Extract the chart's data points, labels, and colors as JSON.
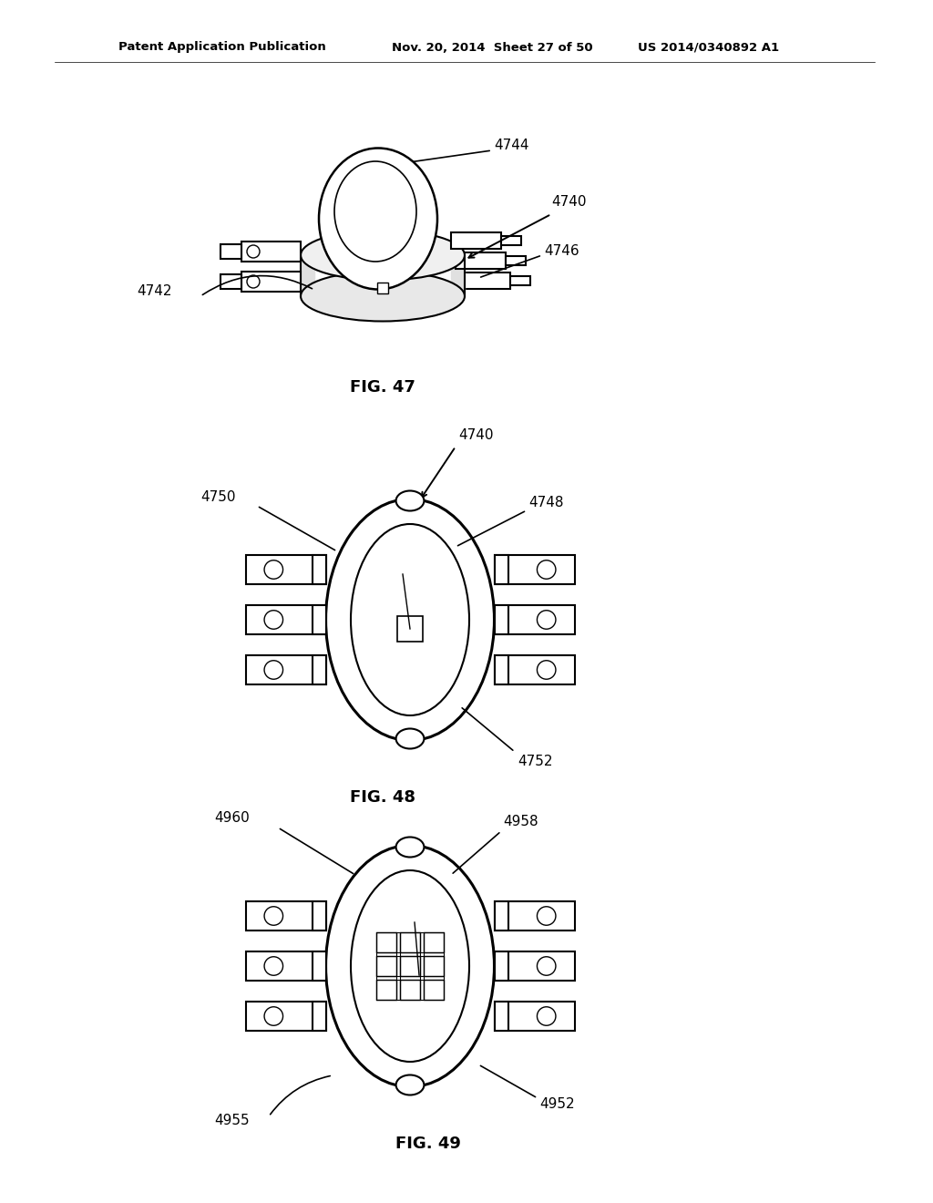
{
  "background_color": "#ffffff",
  "header_left": "Patent Application Publication",
  "header_mid": "Nov. 20, 2014  Sheet 27 of 50",
  "header_right": "US 2014/0340892 A1",
  "line_color": "#000000",
  "fig47_label": "FIG. 47",
  "fig48_label": "FIG. 48",
  "fig49_label": "FIG. 49"
}
